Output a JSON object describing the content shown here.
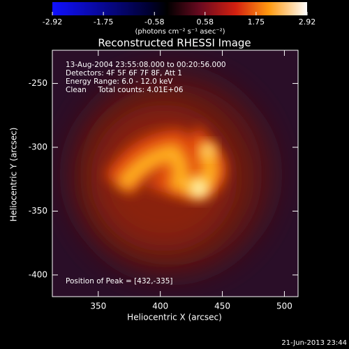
{
  "chart_data": {
    "type": "image",
    "title": "Reconstructed RHESSI Image",
    "colorbar": {
      "lim": [
        -2.92,
        2.92
      ],
      "ticks": [
        -2.92,
        -1.75,
        -0.58,
        0.58,
        1.75,
        2.92
      ],
      "label": "(photons cm⁻² s⁻¹ asec⁻²)"
    },
    "xlabel": "Heliocentric X (arcsec)",
    "ylabel": "Heliocentric Y (arcsec)",
    "xlim": [
      313,
      511
    ],
    "xticks": [
      350,
      400,
      450,
      500
    ],
    "ylim": [
      -417,
      -224
    ],
    "yticks": [
      -250,
      -300,
      -350,
      -400
    ],
    "annotations": [
      "13-Aug-2004 23:55:08.000 to 00:20:56.000",
      "Detectors: 4F 5F 6F 7F 8F, Att 1",
      "Energy Range: 6.0 - 12.0 keV",
      "Clean     Total counts: 4.01E+06",
      "Position of Peak = [432,-335]"
    ],
    "footer": "21-Jun-2013 23:44"
  }
}
